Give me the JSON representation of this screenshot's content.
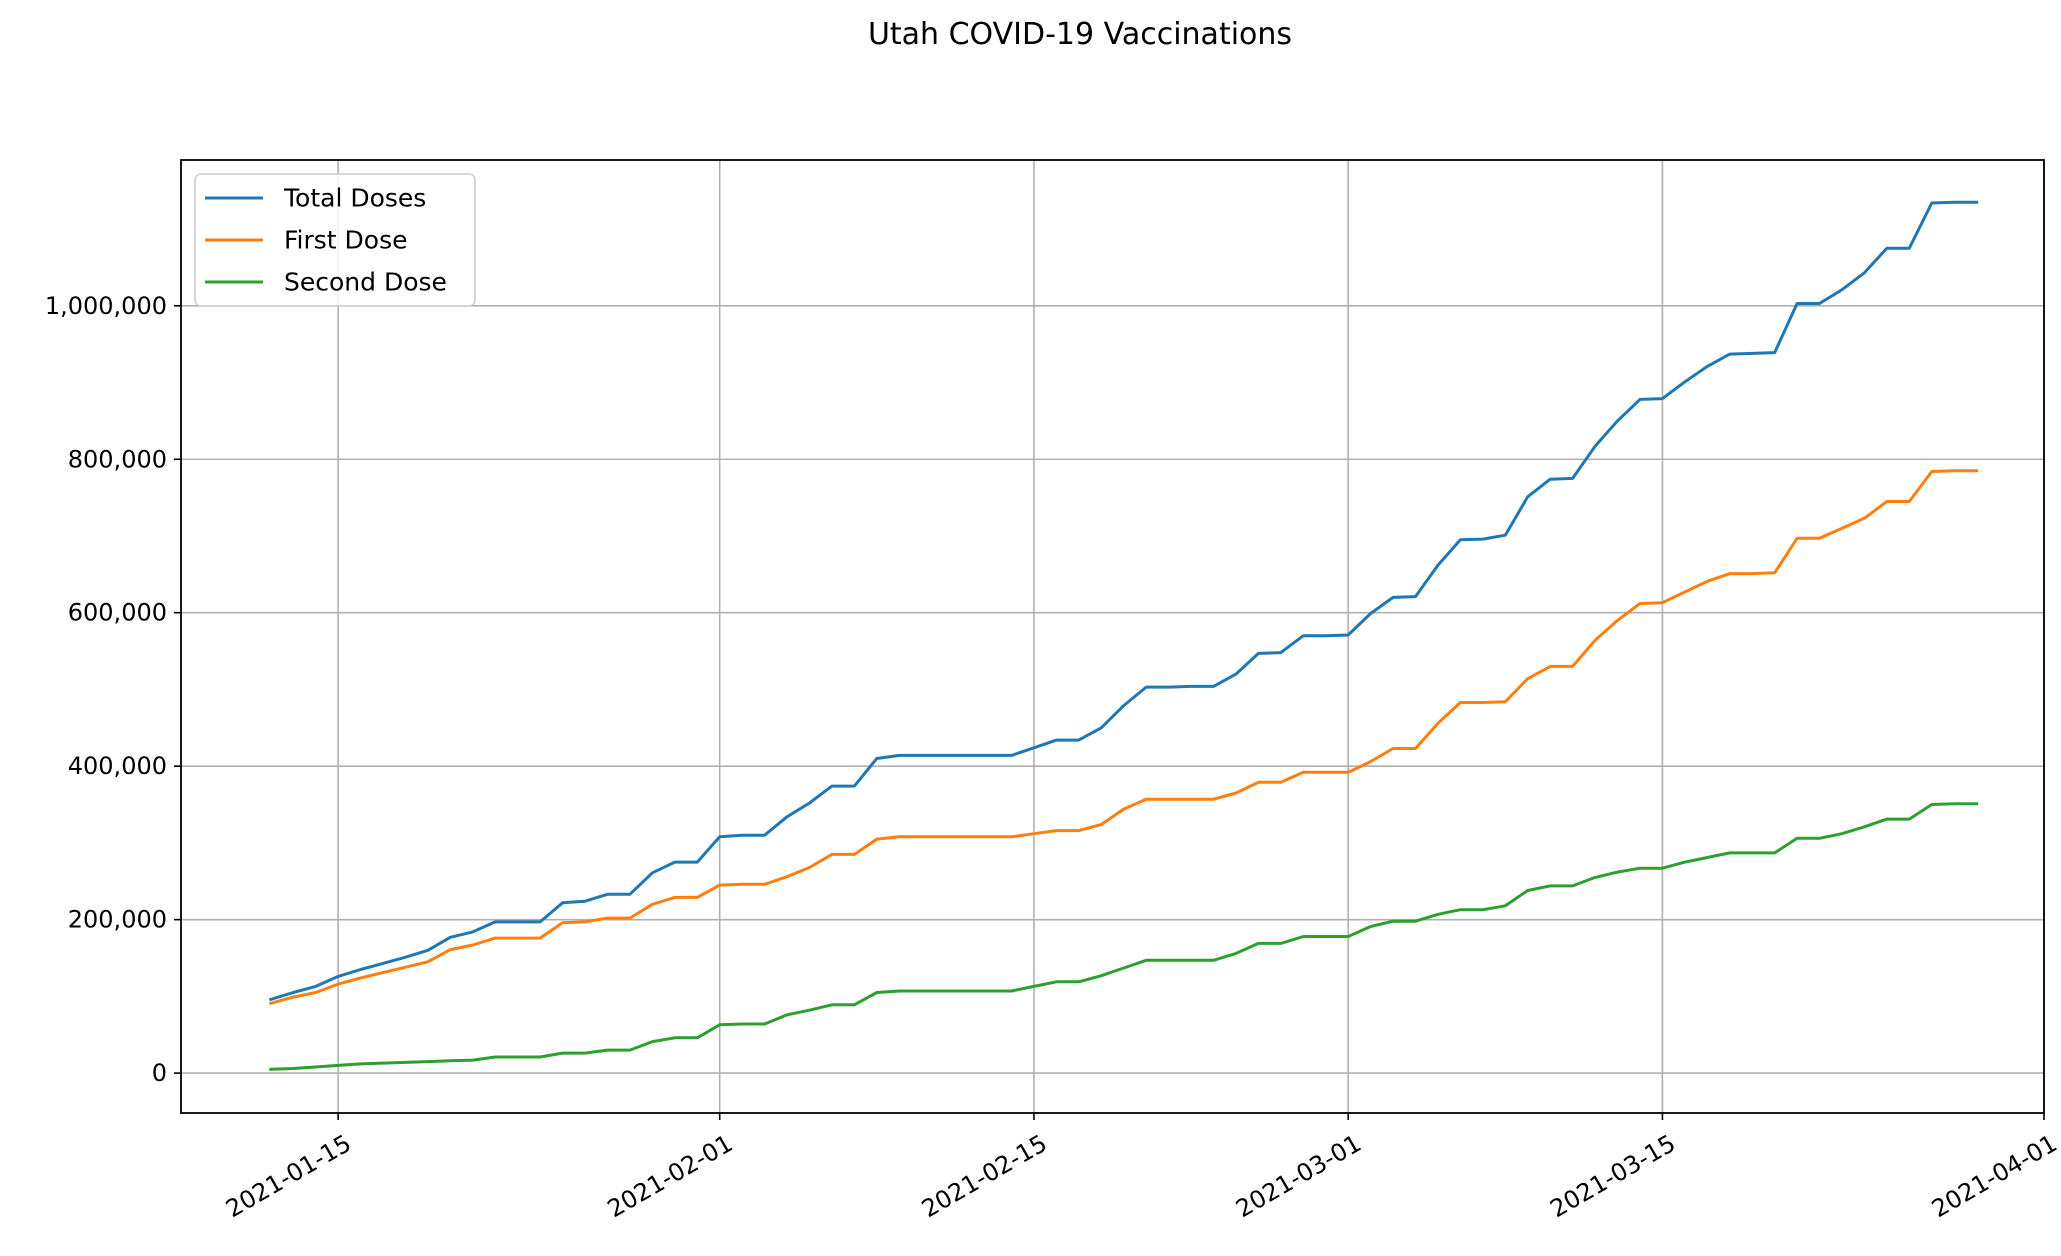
{
  "chart_data": {
    "type": "line",
    "title": "Utah COVID-19 Vaccinations",
    "xlabel": "",
    "ylabel": "",
    "grid": true,
    "legend_position": "upper-left",
    "x_ticks": [
      "2021-01-15",
      "2021-02-01",
      "2021-02-15",
      "2021-03-01",
      "2021-03-15",
      "2021-04-01"
    ],
    "y_ticks": [
      0,
      200000,
      400000,
      600000,
      800000,
      1000000
    ],
    "y_tick_labels": [
      "0",
      "200,000",
      "400,000",
      "600,000",
      "800,000",
      "1,000,000"
    ],
    "x_range": [
      "2021-01-08",
      "2021-04-01"
    ],
    "ylim": [
      -52000,
      1190000
    ],
    "x": [
      "2021-01-12",
      "2021-01-13",
      "2021-01-14",
      "2021-01-15",
      "2021-01-16",
      "2021-01-17",
      "2021-01-18",
      "2021-01-19",
      "2021-01-20",
      "2021-01-21",
      "2021-01-22",
      "2021-01-23",
      "2021-01-24",
      "2021-01-25",
      "2021-01-26",
      "2021-01-27",
      "2021-01-28",
      "2021-01-29",
      "2021-01-30",
      "2021-01-31",
      "2021-02-01",
      "2021-02-02",
      "2021-02-03",
      "2021-02-04",
      "2021-02-05",
      "2021-02-06",
      "2021-02-07",
      "2021-02-08",
      "2021-02-09",
      "2021-02-10",
      "2021-02-11",
      "2021-02-12",
      "2021-02-13",
      "2021-02-14",
      "2021-02-15",
      "2021-02-16",
      "2021-02-17",
      "2021-02-18",
      "2021-02-19",
      "2021-02-20",
      "2021-02-21",
      "2021-02-22",
      "2021-02-23",
      "2021-02-24",
      "2021-02-25",
      "2021-02-26",
      "2021-02-27",
      "2021-02-28",
      "2021-03-01",
      "2021-03-02",
      "2021-03-03",
      "2021-03-04",
      "2021-03-05",
      "2021-03-06",
      "2021-03-07",
      "2021-03-08",
      "2021-03-09",
      "2021-03-10",
      "2021-03-11",
      "2021-03-12",
      "2021-03-13",
      "2021-03-14",
      "2021-03-15",
      "2021-03-16",
      "2021-03-17",
      "2021-03-18",
      "2021-03-19",
      "2021-03-20",
      "2021-03-21",
      "2021-03-22",
      "2021-03-23",
      "2021-03-24",
      "2021-03-25",
      "2021-03-26",
      "2021-03-27",
      "2021-03-28",
      "2021-03-29"
    ],
    "series": [
      {
        "name": "Total Doses",
        "color": "#1f77b4",
        "values": [
          96000,
          105000,
          113000,
          126000,
          135000,
          143000,
          151000,
          160000,
          177000,
          184000,
          197000,
          197000,
          197000,
          222000,
          224000,
          233000,
          233000,
          261000,
          275000,
          275000,
          308000,
          310000,
          310000,
          334000,
          352000,
          374000,
          374000,
          410000,
          414000,
          414000,
          414000,
          414000,
          414000,
          414000,
          424000,
          434000,
          434000,
          450000,
          479000,
          503000,
          503000,
          504000,
          504000,
          520000,
          547000,
          548000,
          570000,
          570000,
          571000,
          599000,
          620000,
          621000,
          662000,
          695000,
          696000,
          701000,
          751000,
          774000,
          775000,
          817000,
          850000,
          878000,
          879000,
          901000,
          921000,
          937000,
          938000,
          939000,
          1003000,
          1003000,
          1021000,
          1043000,
          1075000,
          1075000,
          1134000,
          1135000,
          1135000
        ]
      },
      {
        "name": "First Dose",
        "color": "#ff7f0e",
        "values": [
          91000,
          99000,
          105000,
          116000,
          124000,
          131000,
          138000,
          145000,
          161000,
          167000,
          176000,
          176000,
          176000,
          196000,
          197000,
          202000,
          202000,
          220000,
          229000,
          229000,
          245000,
          246000,
          246000,
          256000,
          268000,
          285000,
          285000,
          305000,
          308000,
          308000,
          308000,
          308000,
          308000,
          308000,
          312000,
          316000,
          316000,
          324000,
          344000,
          357000,
          357000,
          357000,
          357000,
          365000,
          379000,
          379000,
          392000,
          392000,
          392000,
          406000,
          423000,
          423000,
          456000,
          483000,
          483000,
          484000,
          514000,
          530000,
          530000,
          564000,
          590000,
          612000,
          613000,
          627000,
          641000,
          651000,
          651000,
          652000,
          697000,
          697000,
          710000,
          723000,
          745000,
          745000,
          784000,
          785000,
          785000
        ]
      },
      {
        "name": "Second Dose",
        "color": "#2ca02c",
        "values": [
          5000,
          6000,
          8000,
          10000,
          12000,
          13000,
          14000,
          15000,
          16000,
          17000,
          21000,
          21000,
          21000,
          26000,
          26000,
          30000,
          30000,
          41000,
          46000,
          46000,
          63000,
          64000,
          64000,
          76000,
          82000,
          89000,
          89000,
          105000,
          107000,
          107000,
          107000,
          107000,
          107000,
          107000,
          113000,
          119000,
          119000,
          127000,
          137000,
          147000,
          147000,
          147000,
          147000,
          156000,
          169000,
          169000,
          178000,
          178000,
          178000,
          191000,
          198000,
          198000,
          207000,
          213000,
          213000,
          218000,
          238000,
          244000,
          244000,
          255000,
          262000,
          267000,
          267000,
          275000,
          281000,
          287000,
          287000,
          287000,
          306000,
          306000,
          312000,
          321000,
          331000,
          331000,
          350000,
          351000,
          351000
        ]
      }
    ]
  }
}
